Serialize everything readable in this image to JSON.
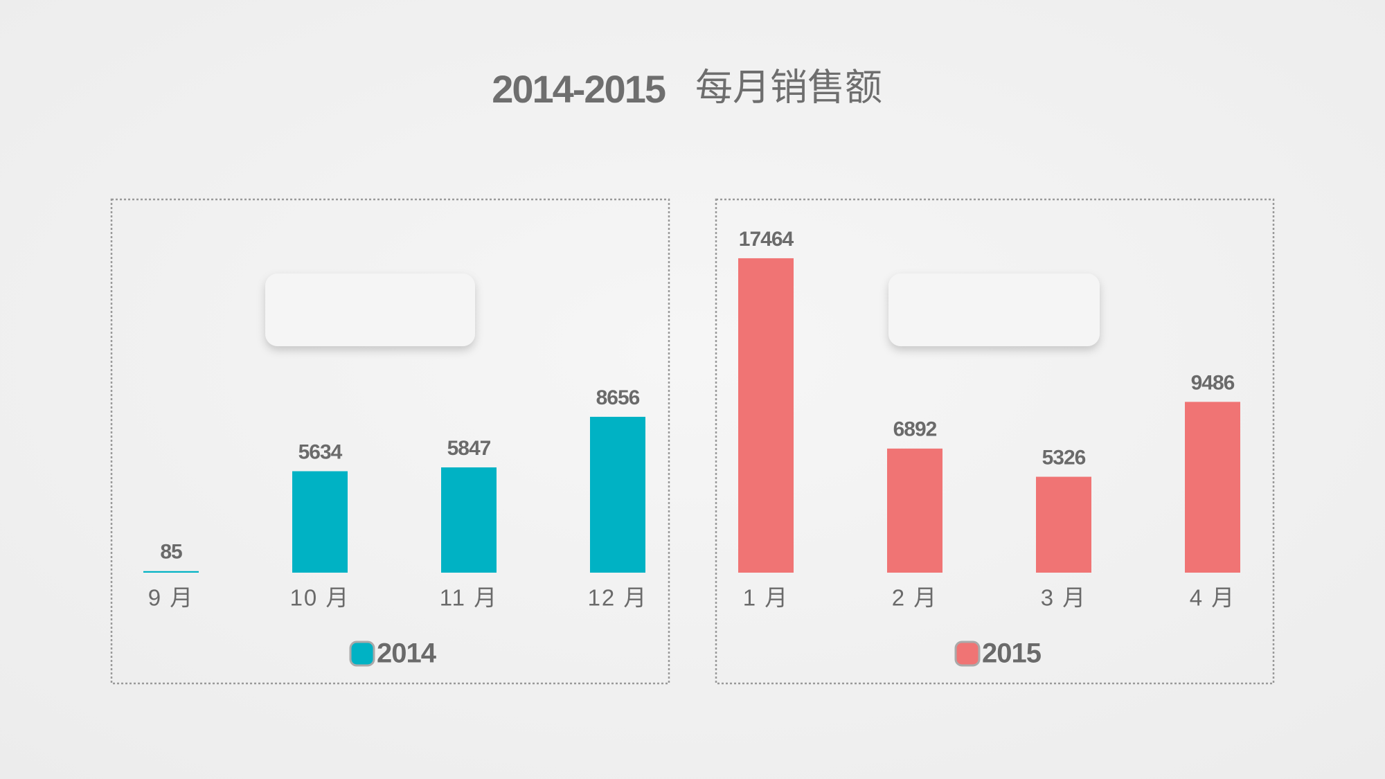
{
  "title": {
    "year": "2014-2015",
    "text": "每月销售额"
  },
  "chart_data": [
    {
      "type": "bar",
      "categories": [
        "9 月",
        "10 月",
        "11 月",
        "12 月"
      ],
      "series": [
        {
          "name": "2014",
          "color": "#00b2c4",
          "values": [
            85,
            5634,
            5847,
            8656
          ]
        }
      ]
    },
    {
      "type": "bar",
      "categories": [
        "1 月",
        "2 月",
        "3 月",
        "4 月"
      ],
      "series": [
        {
          "name": "2015",
          "color": "#f07474",
          "values": [
            17464,
            6892,
            5326,
            9486
          ]
        }
      ]
    }
  ]
}
